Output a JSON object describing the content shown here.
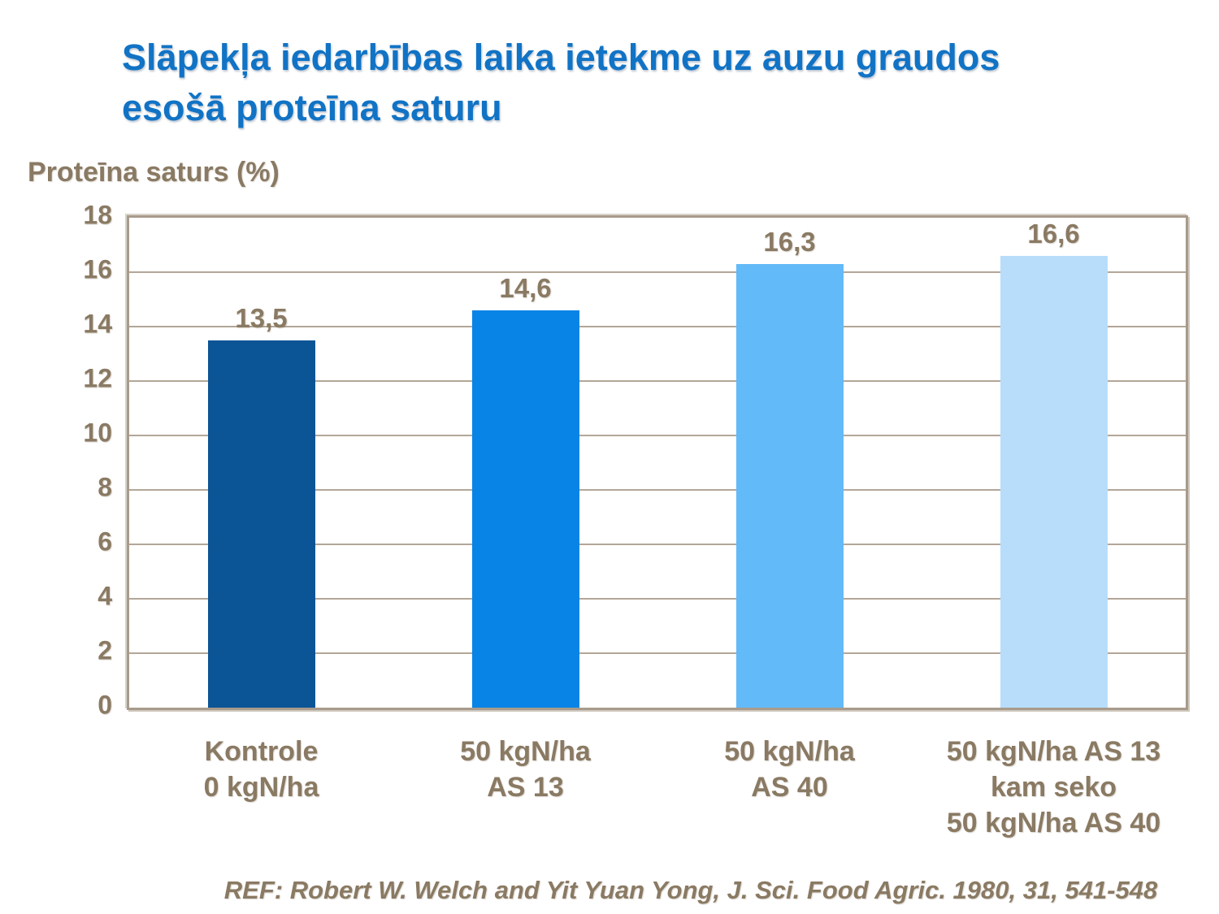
{
  "slide": {
    "title_line1": "Slāpekļa iedarbības laika ietekme uz auzu graudos",
    "title_line2": "esošā proteīna saturu",
    "reference": "REF: Robert W. Welch and Yit Yuan Yong, J. Sci. Food Agric. 1980, 31, 541-548"
  },
  "chart_data": {
    "type": "bar",
    "title": "Slāpekļa iedarbības laika ietekme uz auzu graudos esošā proteīna saturu",
    "ylabel": "Proteīna saturs (%)",
    "xlabel": "",
    "ylim": [
      0,
      18
    ],
    "ytick_step": 2,
    "grid": true,
    "legend_position": "none",
    "categories": [
      [
        "Kontrole",
        "0 kgN/ha"
      ],
      [
        "50 kgN/ha",
        "AS 13"
      ],
      [
        "50 kgN/ha",
        "AS 40"
      ],
      [
        "50 kgN/ha AS 13",
        "kam seko",
        "50 kgN/ha AS 40"
      ]
    ],
    "values": [
      13.5,
      14.6,
      16.3,
      16.6
    ],
    "value_labels": [
      "13,5",
      "14,6",
      "16,3",
      "16,6"
    ],
    "bar_colors": [
      "#0b5596",
      "#0884e6",
      "#63baf9",
      "#b7ddfa"
    ],
    "colors": {
      "title_blue": "#1173c5",
      "text_brown": "#8a7a63",
      "gridline": "#b3a798",
      "plot_border": "#a89b8c",
      "plot_border_highlight": "#d9d3c9",
      "background": "#ffffff"
    }
  }
}
